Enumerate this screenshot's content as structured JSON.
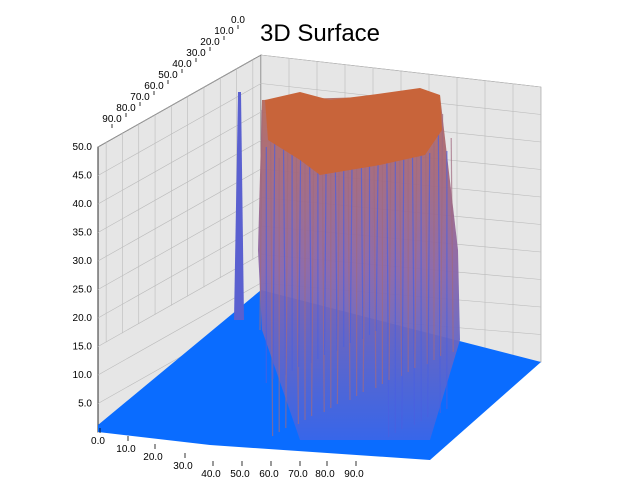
{
  "chart_data": {
    "type": "surface",
    "title": "3D Surface",
    "z_ticks": [
      "5.0",
      "10.0",
      "15.0",
      "20.0",
      "25.0",
      "30.0",
      "35.0",
      "40.0",
      "45.0",
      "50.0"
    ],
    "zlim": [
      0,
      50
    ],
    "x_ticks": [
      "0.0",
      "10.0",
      "20.0",
      "30.0",
      "40.0",
      "50.0",
      "60.0",
      "70.0",
      "80.0",
      "90.0"
    ],
    "y_ticks": [
      "0.0",
      "10.0",
      "20.0",
      "30.0",
      "40.0",
      "50.0",
      "60.0",
      "70.0",
      "80.0",
      "90.0"
    ],
    "surface": {
      "floor_value": 0,
      "plateau_value": 50,
      "plateau_region": "center-back",
      "spike_value": 40,
      "low_color": "#0a6cff",
      "high_color": "#c8643a",
      "mid_color": "#6a6ad0"
    },
    "grid": true
  }
}
